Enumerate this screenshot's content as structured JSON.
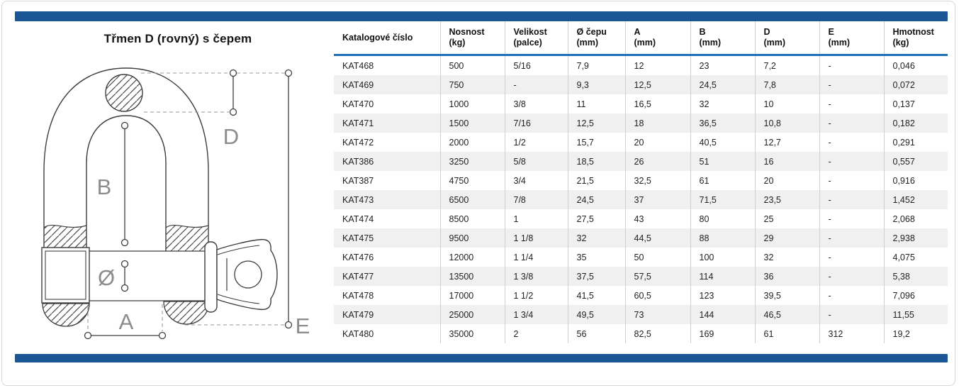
{
  "page": {
    "title": "Třmen D (rovný) s čepem"
  },
  "diagram": {
    "labels": {
      "b": "B",
      "d": "D",
      "a": "A",
      "e": "E",
      "diameter": "Ø"
    }
  },
  "table": {
    "columns": [
      {
        "line1": "Katalogové číslo",
        "line2": ""
      },
      {
        "line1": "Nosnost",
        "line2": "(kg)"
      },
      {
        "line1": "Velikost",
        "line2": "(palce)"
      },
      {
        "line1": "Ø čepu",
        "line2": "(mm)"
      },
      {
        "line1": "A",
        "line2": "(mm)"
      },
      {
        "line1": "B",
        "line2": "(mm)"
      },
      {
        "line1": "D",
        "line2": "(mm)"
      },
      {
        "line1": "E",
        "line2": "(mm)"
      },
      {
        "line1": "Hmotnost",
        "line2": "(kg)"
      }
    ],
    "rows": [
      [
        "KAT468",
        "500",
        "5/16",
        "7,9",
        "12",
        "23",
        "7,2",
        "-",
        "0,046"
      ],
      [
        "KAT469",
        "750",
        "-",
        "9,3",
        "12,5",
        "24,5",
        "7,8",
        "-",
        "0,072"
      ],
      [
        "KAT470",
        "1000",
        "3/8",
        "11",
        "16,5",
        "32",
        "10",
        "-",
        "0,137"
      ],
      [
        "KAT471",
        "1500",
        "7/16",
        "12,5",
        "18",
        "36,5",
        "10,8",
        "-",
        "0,182"
      ],
      [
        "KAT472",
        "2000",
        "1/2",
        "15,7",
        "20",
        "40,5",
        "12,7",
        "-",
        "0,291"
      ],
      [
        "KAT386",
        "3250",
        "5/8",
        "18,5",
        "26",
        "51",
        "16",
        "-",
        "0,557"
      ],
      [
        "KAT387",
        "4750",
        "3/4",
        "21,5",
        "32,5",
        "61",
        "20",
        "-",
        "0,916"
      ],
      [
        "KAT473",
        "6500",
        "7/8",
        "24,5",
        "37",
        "71,5",
        "23,5",
        "-",
        "1,452"
      ],
      [
        "KAT474",
        "8500",
        "1",
        "27,5",
        "43",
        "80",
        "25",
        "-",
        "2,068"
      ],
      [
        "KAT475",
        "9500",
        "1 1/8",
        "32",
        "44,5",
        "88",
        "29",
        "-",
        "2,938"
      ],
      [
        "KAT476",
        "12000",
        "1 1/4",
        "35",
        "50",
        "100",
        "32",
        "-",
        "4,075"
      ],
      [
        "KAT477",
        "13500",
        "1 3/8",
        "37,5",
        "57,5",
        "114",
        "36",
        "-",
        "5,38"
      ],
      [
        "KAT478",
        "17000",
        "1 1/2",
        "41,5",
        "60,5",
        "123",
        "39,5",
        "-",
        "7,096"
      ],
      [
        "KAT479",
        "25000",
        "1 3/4",
        "49,5",
        "73",
        "144",
        "46,5",
        "-",
        "11,55"
      ],
      [
        "KAT480",
        "35000",
        "2",
        "56",
        "82,5",
        "169",
        "61",
        "312",
        "19,2"
      ]
    ]
  },
  "colors": {
    "bar": "#1b5794",
    "header_underline": "#1e6fb8",
    "row_alt": "#f0f0f0",
    "grid": "#d0d0d0"
  }
}
